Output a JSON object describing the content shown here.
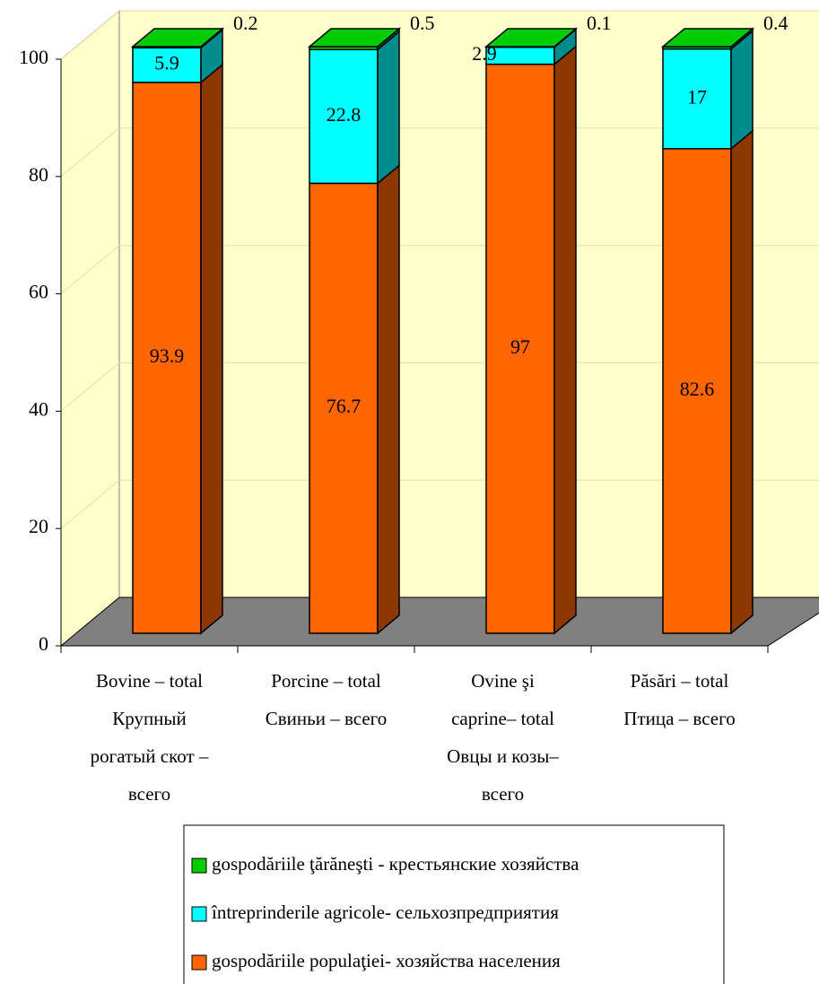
{
  "chart_data": {
    "type": "stacked_bar_3d",
    "categories": [
      "Bovine – total\nКрупный\nрогатый скот –\nвсего",
      "Porcine – total\nСвиньи – всего",
      "Ovine şi\ncaprine– total\nОвцы  и козы–\nвсего",
      "Păsări – total\nПтица – всего"
    ],
    "series": [
      {
        "name": "gospodăriile populaţiei-  хозяйства населения",
        "color": "#ff6600",
        "values": [
          93.9,
          76.7,
          97,
          82.6
        ]
      },
      {
        "name": "întreprinderile agricole- сельхозпредприятия",
        "color": "#00ffff",
        "values": [
          5.9,
          22.8,
          2.9,
          17
        ]
      },
      {
        "name": "gospodăriile ţărăneşti - крестьянские хозяйства",
        "color": "#00cc00",
        "values": [
          0.2,
          0.5,
          0.1,
          0.4
        ]
      }
    ],
    "ylim": [
      0,
      100
    ],
    "yticks": [
      0,
      20,
      40,
      60,
      80,
      100
    ],
    "grid": true,
    "legend": "bottom"
  }
}
